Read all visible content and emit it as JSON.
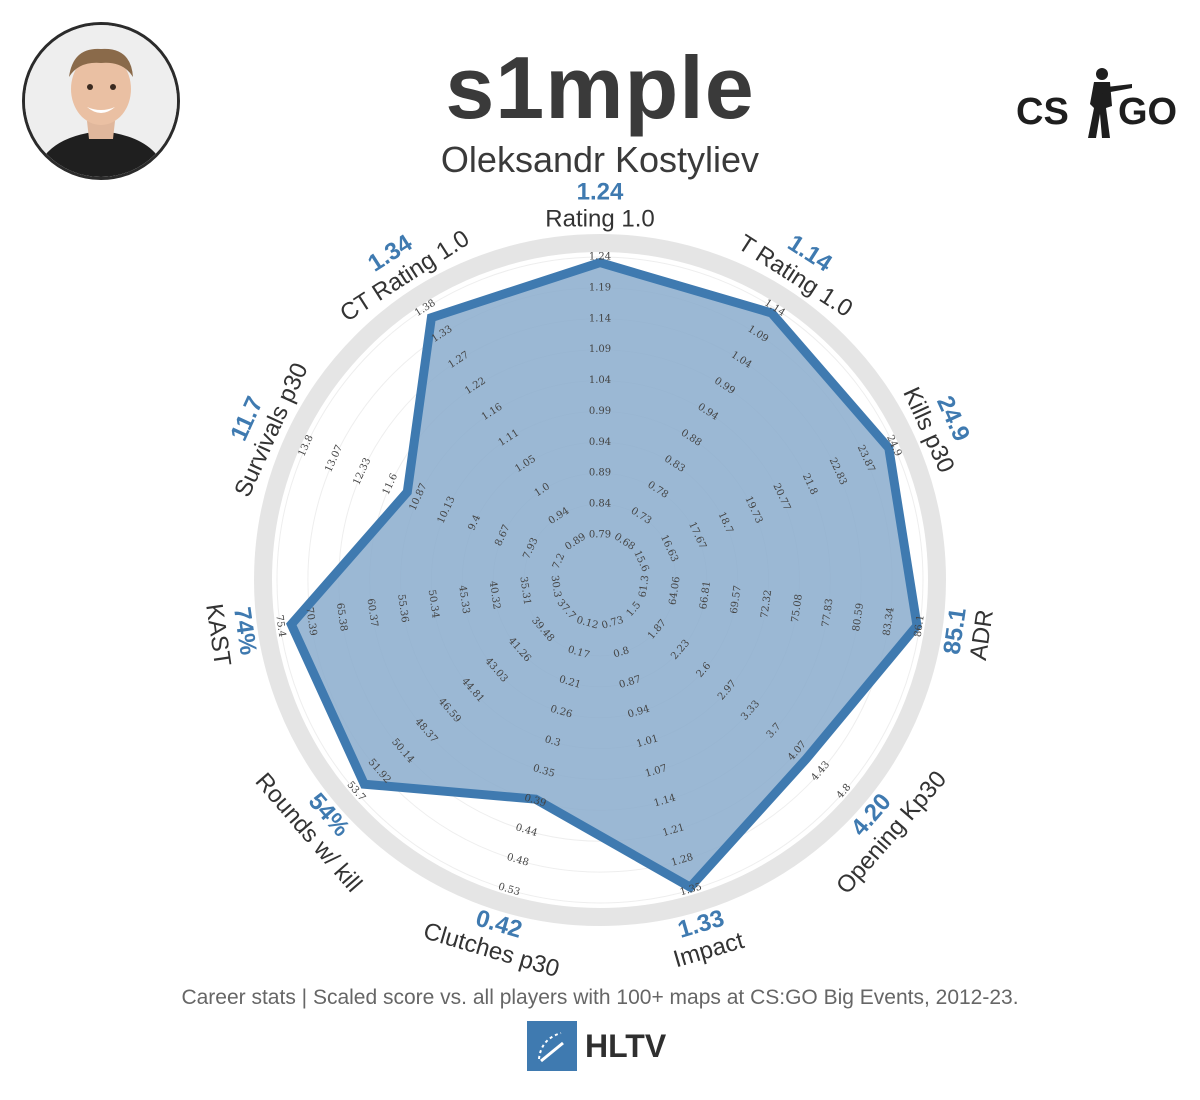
{
  "header": {
    "player_name": "s1mple",
    "real_name": "Oleksandr Kostyliev",
    "game_logo": {
      "left": "CS",
      "right": "GO",
      "icon": "soldier-silhouette-icon"
    },
    "avatar_icon": "player-photo"
  },
  "footer": {
    "note": "Career stats | Scaled score vs. all players with 100+ maps at CS:GO Big Events, 2012-23.",
    "brand": "HLTV",
    "brand_icon": "hltv-logo-icon"
  },
  "colors": {
    "accent": "#3f7ab0",
    "fill": "#89abcc",
    "ring": "#e5e5e5",
    "text": "#333333"
  },
  "chart_data": {
    "type": "radar",
    "title": "",
    "scale_max": 1.0,
    "axes": [
      {
        "name": "Rating 1.0",
        "value_label": "1.24",
        "score": 0.98,
        "ticks": [
          "0.79",
          "0.84",
          "0.89",
          "0.94",
          "0.99",
          "1.04",
          "1.09",
          "1.14",
          "1.19",
          "1.24"
        ]
      },
      {
        "name": "T Rating 1.0",
        "value_label": "1.14",
        "score": 0.98,
        "ticks": [
          "0.68",
          "0.73",
          "0.78",
          "0.83",
          "0.88",
          "0.94",
          "0.99",
          "1.04",
          "1.09",
          "1.14"
        ]
      },
      {
        "name": "Kills p30",
        "value_label": "24.9",
        "score": 0.98,
        "ticks": [
          "15.6",
          "16.63",
          "17.67",
          "18.7",
          "19.73",
          "20.77",
          "21.8",
          "22.83",
          "23.87",
          "24.9"
        ]
      },
      {
        "name": "ADR",
        "value_label": "85.1",
        "score": 0.99,
        "ticks": [
          "61.3",
          "64.06",
          "66.81",
          "69.57",
          "72.32",
          "75.08",
          "77.83",
          "80.59",
          "83.34",
          "86.1"
        ]
      },
      {
        "name": "Opening Kp30",
        "value_label": "4.20",
        "score": 0.82,
        "ticks": [
          "1.5",
          "1.87",
          "2.23",
          "2.6",
          "2.97",
          "3.33",
          "3.7",
          "4.07",
          "4.43",
          "4.8"
        ]
      },
      {
        "name": "Impact",
        "value_label": "1.33",
        "score": 0.99,
        "ticks": [
          "0.73",
          "0.8",
          "0.87",
          "0.94",
          "1.01",
          "1.07",
          "1.14",
          "1.21",
          "1.28",
          "1.35"
        ]
      },
      {
        "name": "Clutches p30",
        "value_label": "0.42",
        "score": 0.66,
        "ticks": [
          "0.12",
          "0.17",
          "0.21",
          "0.26",
          "0.3",
          "0.35",
          "0.39",
          "0.44",
          "0.48",
          "0.53"
        ]
      },
      {
        "name": "Rounds w/ kill",
        "value_label": "54%",
        "score": 0.96,
        "ticks": [
          "37.7",
          "39.48",
          "41.26",
          "43.03",
          "44.81",
          "46.59",
          "48.37",
          "50.14",
          "51.92",
          "53.7"
        ]
      },
      {
        "name": "KAST",
        "value_label": "74%",
        "score": 0.96,
        "ticks": [
          "30.3",
          "35.31",
          "40.32",
          "45.33",
          "50.34",
          "55.36",
          "60.37",
          "65.38",
          "70.39",
          "75.4"
        ]
      },
      {
        "name": "Survivals p30",
        "value_label": "11.7",
        "score": 0.6,
        "ticks": [
          "7.2",
          "7.93",
          "8.67",
          "9.4",
          "10.13",
          "10.87",
          "11.6",
          "12.33",
          "13.07",
          "13.8"
        ]
      },
      {
        "name": "CT Rating 1.0",
        "value_label": "1.34",
        "score": 0.96,
        "ticks": [
          "0.89",
          "0.94",
          "1.0",
          "1.05",
          "1.11",
          "1.16",
          "1.22",
          "1.27",
          "1.33",
          "1.38"
        ]
      }
    ]
  }
}
